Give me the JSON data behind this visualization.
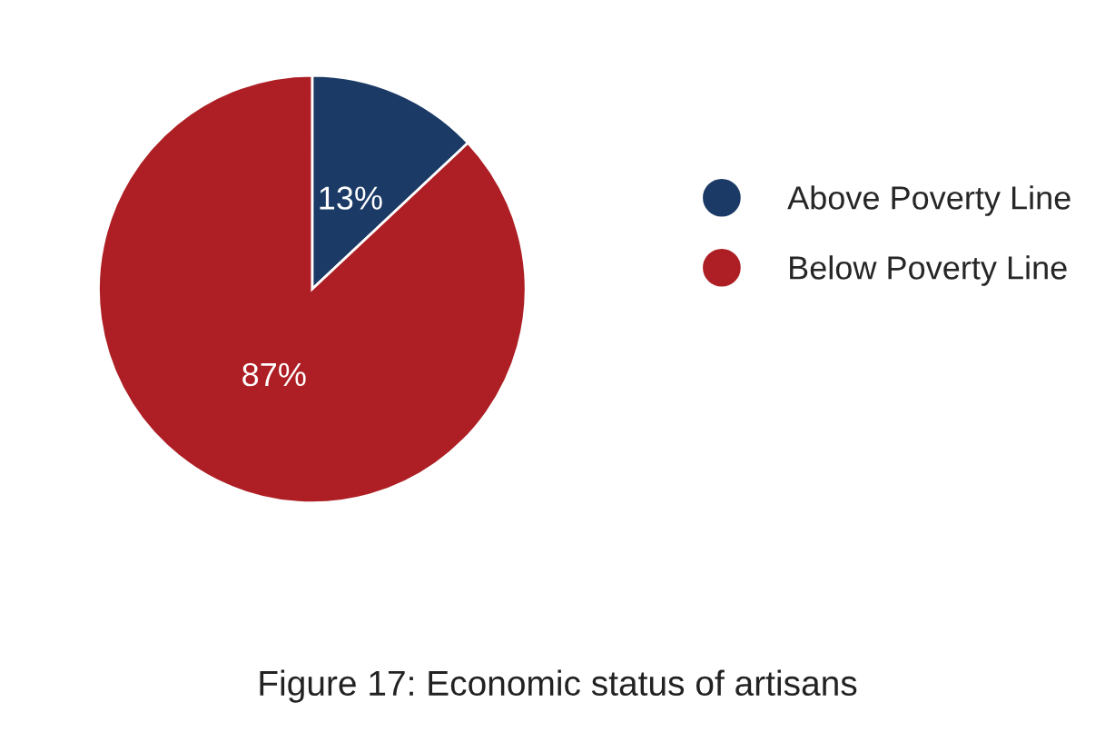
{
  "chart_data": {
    "type": "pie",
    "categories": [
      "Above Poverty Line",
      "Below Poverty Line"
    ],
    "values": [
      13,
      87
    ],
    "colors": [
      "#1b3a66",
      "#ad1f24"
    ],
    "value_labels": [
      "13%",
      "87%"
    ],
    "legend": "right",
    "annotations": [
      "Figure 17: Economic status of artisans"
    ]
  }
}
